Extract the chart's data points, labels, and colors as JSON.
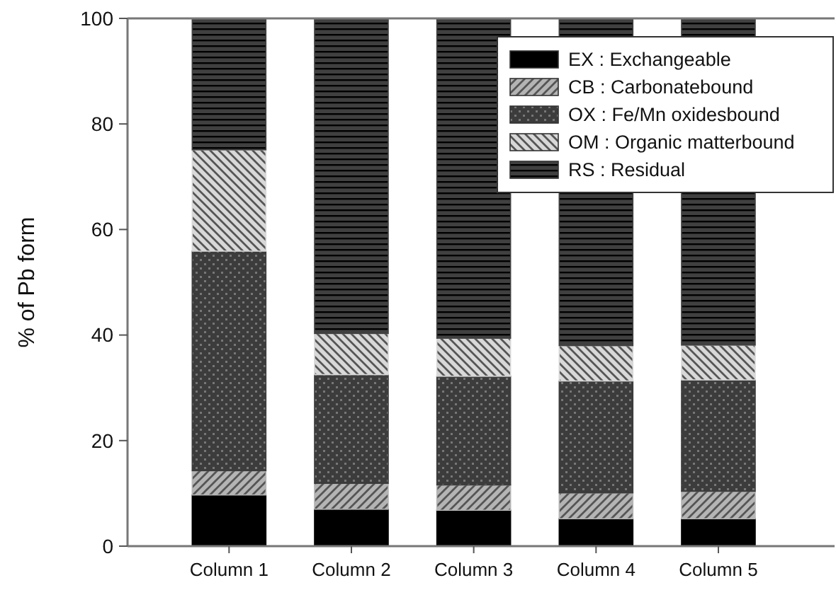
{
  "chart_data": {
    "type": "bar",
    "stacked": true,
    "ylabel": "% of Pb form",
    "categories": [
      "Column 1",
      "Column 2",
      "Column 3",
      "Column 4",
      "Column 5"
    ],
    "ylim": [
      0,
      100
    ],
    "yticks": [
      0,
      20,
      40,
      60,
      80,
      100
    ],
    "legend": "top right",
    "grid": false,
    "series": [
      {
        "name": "EX : Exchangeable",
        "color": "#000000",
        "values": [
          9.7,
          7.0,
          6.8,
          5.2,
          5.2
        ]
      },
      {
        "name": "CB : Carbonatebound",
        "color": "#b4b4b4",
        "values": [
          4.6,
          4.9,
          4.8,
          4.9,
          5.2
        ]
      },
      {
        "name": "OX : Fe/Mn oxidesbound",
        "color": "#3c3c3c",
        "values": [
          41.6,
          20.6,
          20.6,
          21.2,
          21.1
        ]
      },
      {
        "name": "OM : Organic matterbound",
        "color": "#d8d8d8",
        "values": [
          19.2,
          7.8,
          7.2,
          6.7,
          6.6
        ]
      },
      {
        "name": "RS : Residual",
        "color": "#404040",
        "values": [
          24.9,
          59.7,
          60.6,
          62.0,
          61.9
        ]
      }
    ]
  }
}
